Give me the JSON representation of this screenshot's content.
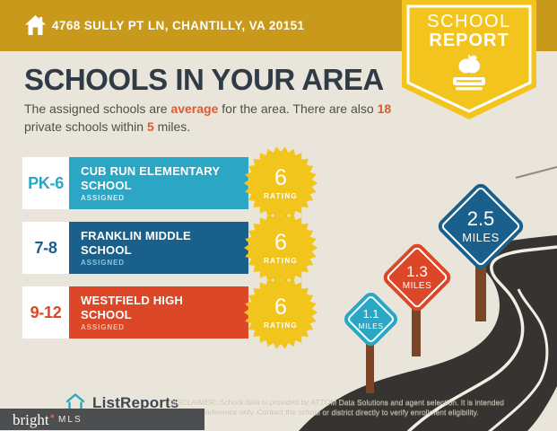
{
  "header": {
    "address": "4768 SULLY PT LN, CHANTILLY, VA 20151",
    "badge": {
      "line1": "SCHOOL",
      "line2": "REPORT"
    }
  },
  "main": {
    "title": "SCHOOLS IN YOUR AREA",
    "subtitle": {
      "l1a": "The assigned schools are ",
      "l1b": "average",
      "l1c": " for the area. There are also ",
      "l1d": "18",
      "l2a": "private schools within ",
      "l2b": "5",
      "l2c": " miles."
    }
  },
  "schools": [
    {
      "grades": "PK-6",
      "name": "CUB RUN ELEMENTARY SCHOOL",
      "tag": "ASSIGNED",
      "rating": "6",
      "rating_label": "RATING",
      "color": "#2BA6C4",
      "assigned_color": "#CFEDF5"
    },
    {
      "grades": "7-8",
      "name": "FRANKLIN MIDDLE SCHOOL",
      "tag": "ASSIGNED",
      "rating": "6",
      "rating_label": "RATING",
      "color": "#19618C",
      "assigned_color": "#8FC3DD"
    },
    {
      "grades": "9-12",
      "name": "WESTFIELD HIGH SCHOOL",
      "tag": "ASSIGNED",
      "rating": "6",
      "rating_label": "RATING",
      "color": "#DC4727",
      "assigned_color": "#F6BCA4"
    }
  ],
  "badge_color": "#F2C51D",
  "signs": [
    {
      "value": "1.1",
      "label": "MILES",
      "color": "#2BA6C4"
    },
    {
      "value": "1.3",
      "label": "MILES",
      "color": "#DC4727"
    },
    {
      "value": "2.5",
      "label": "MILES",
      "color": "#19618C"
    }
  ],
  "footer": {
    "brand": "ListReports",
    "mls": {
      "word": "bright",
      "suffix": "MLS"
    },
    "disclaimer_line1": "DISCLAIMER: School data is provided by ATTOM Data Solutions and agent selection. It is intended",
    "disclaimer_line2": "for reference only. Contact the school or district directly to verify enrollment eligibility."
  },
  "colors": {
    "header_gold": "#C8991B",
    "ribbon_yellow": "#F2C41D",
    "background": "#EAE5DA",
    "title_text": "#2F3B47",
    "accent_orange": "#E2582E",
    "road": "#363430",
    "post_brown": "#7B4627"
  }
}
